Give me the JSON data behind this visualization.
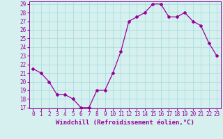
{
  "x": [
    0,
    1,
    2,
    3,
    4,
    5,
    6,
    7,
    8,
    9,
    10,
    11,
    12,
    13,
    14,
    15,
    16,
    17,
    18,
    19,
    20,
    21,
    22,
    23
  ],
  "y": [
    21.5,
    21.0,
    20.0,
    18.5,
    18.5,
    18.0,
    17.0,
    17.0,
    19.0,
    19.0,
    21.0,
    23.5,
    27.0,
    27.5,
    28.0,
    29.0,
    29.0,
    27.5,
    27.5,
    28.0,
    27.0,
    26.5,
    24.5,
    23.0
  ],
  "line_color": "#990099",
  "marker": "D",
  "marker_size": 2,
  "bg_color": "#d6f0f0",
  "grid_color": "#aadddd",
  "xlabel": "Windchill (Refroidissement éolien,°C)",
  "ylim": [
    17,
    29
  ],
  "xlim": [
    -0.5,
    23.5
  ],
  "yticks": [
    17,
    18,
    19,
    20,
    21,
    22,
    23,
    24,
    25,
    26,
    27,
    28,
    29
  ],
  "xticks": [
    0,
    1,
    2,
    3,
    4,
    5,
    6,
    7,
    8,
    9,
    10,
    11,
    12,
    13,
    14,
    15,
    16,
    17,
    18,
    19,
    20,
    21,
    22,
    23
  ],
  "tick_color": "#990099",
  "label_color": "#990099",
  "label_fontsize": 6.5,
  "tick_fontsize": 5.5
}
